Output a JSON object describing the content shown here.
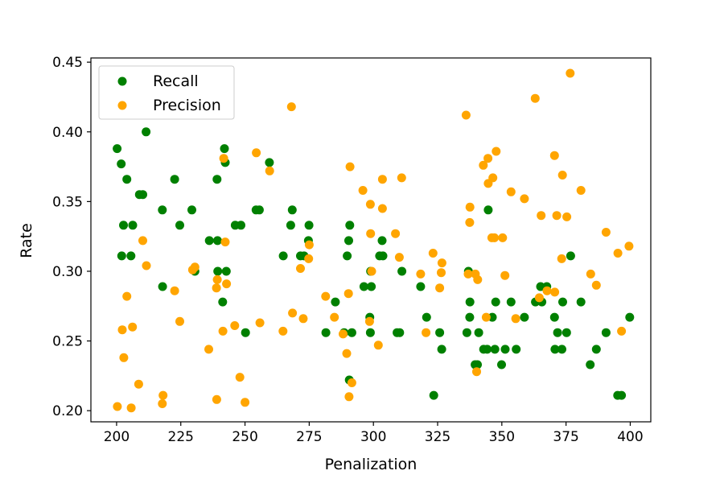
{
  "chart_data": {
    "type": "scatter",
    "xlabel": "Penalization",
    "ylabel": "Rate",
    "xlim": [
      190,
      408
    ],
    "ylim": [
      0.192,
      0.453
    ],
    "x_ticks": [
      200,
      225,
      250,
      275,
      300,
      325,
      350,
      375,
      400
    ],
    "y_ticks": [
      0.2,
      0.25,
      0.3,
      0.35,
      0.4,
      0.45
    ],
    "x_tick_labels": [
      "200",
      "225",
      "250",
      "275",
      "300",
      "325",
      "350",
      "375",
      "400"
    ],
    "y_tick_labels": [
      "0.20",
      "0.25",
      "0.30",
      "0.35",
      "0.40",
      "0.45"
    ],
    "grid": false,
    "legend_position": "top-left",
    "series": [
      {
        "name": "Recall",
        "color": "#008000",
        "points": [
          [
            200.2,
            0.388
          ],
          [
            201.8,
            0.377
          ],
          [
            202.0,
            0.311
          ],
          [
            202.7,
            0.333
          ],
          [
            204.0,
            0.366
          ],
          [
            205.6,
            0.311
          ],
          [
            206.3,
            0.333
          ],
          [
            208.9,
            0.355
          ],
          [
            210.2,
            0.355
          ],
          [
            211.5,
            0.4
          ],
          [
            217.8,
            0.344
          ],
          [
            217.9,
            0.289
          ],
          [
            222.6,
            0.366
          ],
          [
            224.6,
            0.333
          ],
          [
            229.3,
            0.344
          ],
          [
            230.5,
            0.3
          ],
          [
            236.1,
            0.322
          ],
          [
            239.1,
            0.366
          ],
          [
            239.3,
            0.322
          ],
          [
            239.4,
            0.3
          ],
          [
            241.3,
            0.278
          ],
          [
            242.0,
            0.388
          ],
          [
            242.3,
            0.378
          ],
          [
            242.7,
            0.3
          ],
          [
            246.2,
            0.333
          ],
          [
            248.4,
            0.333
          ],
          [
            250.2,
            0.256
          ],
          [
            254.3,
            0.344
          ],
          [
            255.6,
            0.344
          ],
          [
            259.5,
            0.378
          ],
          [
            264.9,
            0.311
          ],
          [
            267.8,
            0.333
          ],
          [
            268.4,
            0.344
          ],
          [
            271.6,
            0.311
          ],
          [
            273.0,
            0.311
          ],
          [
            274.7,
            0.322
          ],
          [
            274.9,
            0.333
          ],
          [
            281.5,
            0.256
          ],
          [
            285.2,
            0.278
          ],
          [
            288.6,
            0.256
          ],
          [
            289.8,
            0.311
          ],
          [
            290.4,
            0.322
          ],
          [
            290.6,
            0.222
          ],
          [
            290.8,
            0.333
          ],
          [
            291.6,
            0.256
          ],
          [
            296.3,
            0.289
          ],
          [
            298.6,
            0.267
          ],
          [
            298.8,
            0.256
          ],
          [
            298.9,
            0.3
          ],
          [
            299.2,
            0.289
          ],
          [
            302.4,
            0.311
          ],
          [
            303.4,
            0.322
          ],
          [
            303.7,
            0.311
          ],
          [
            309.2,
            0.256
          ],
          [
            310.2,
            0.256
          ],
          [
            311.1,
            0.3
          ],
          [
            318.4,
            0.289
          ],
          [
            320.7,
            0.267
          ],
          [
            323.5,
            0.211
          ],
          [
            325.8,
            0.256
          ],
          [
            326.6,
            0.244
          ],
          [
            336.4,
            0.256
          ],
          [
            337.0,
            0.3
          ],
          [
            337.5,
            0.267
          ],
          [
            337.6,
            0.278
          ],
          [
            339.6,
            0.233
          ],
          [
            340.5,
            0.233
          ],
          [
            341.0,
            0.256
          ],
          [
            342.9,
            0.244
          ],
          [
            344.3,
            0.244
          ],
          [
            344.7,
            0.344
          ],
          [
            346.3,
            0.267
          ],
          [
            347.3,
            0.244
          ],
          [
            347.6,
            0.278
          ],
          [
            349.9,
            0.233
          ],
          [
            351.3,
            0.244
          ],
          [
            353.6,
            0.278
          ],
          [
            355.6,
            0.244
          ],
          [
            358.8,
            0.267
          ],
          [
            363.1,
            0.278
          ],
          [
            365.1,
            0.289
          ],
          [
            365.6,
            0.278
          ],
          [
            367.5,
            0.289
          ],
          [
            370.5,
            0.267
          ],
          [
            370.7,
            0.244
          ],
          [
            371.7,
            0.256
          ],
          [
            373.4,
            0.244
          ],
          [
            373.7,
            0.278
          ],
          [
            375.2,
            0.256
          ],
          [
            376.8,
            0.311
          ],
          [
            380.8,
            0.278
          ],
          [
            384.4,
            0.233
          ],
          [
            386.8,
            0.244
          ],
          [
            390.6,
            0.256
          ],
          [
            395.1,
            0.211
          ],
          [
            396.6,
            0.211
          ],
          [
            399.8,
            0.267
          ]
        ]
      },
      {
        "name": "Precision",
        "color": "#ffa500",
        "points": [
          [
            200.3,
            0.203
          ],
          [
            202.2,
            0.258
          ],
          [
            202.8,
            0.238
          ],
          [
            204.0,
            0.282
          ],
          [
            205.7,
            0.202
          ],
          [
            206.2,
            0.26
          ],
          [
            208.6,
            0.219
          ],
          [
            210.2,
            0.322
          ],
          [
            211.6,
            0.304
          ],
          [
            217.8,
            0.205
          ],
          [
            218.1,
            0.211
          ],
          [
            222.6,
            0.286
          ],
          [
            224.6,
            0.264
          ],
          [
            229.6,
            0.301
          ],
          [
            230.5,
            0.303
          ],
          [
            235.9,
            0.244
          ],
          [
            238.9,
            0.288
          ],
          [
            239.0,
            0.208
          ],
          [
            239.2,
            0.294
          ],
          [
            241.4,
            0.257
          ],
          [
            241.7,
            0.381
          ],
          [
            242.3,
            0.321
          ],
          [
            242.8,
            0.291
          ],
          [
            246.0,
            0.261
          ],
          [
            248.0,
            0.224
          ],
          [
            250.0,
            0.206
          ],
          [
            254.4,
            0.385
          ],
          [
            255.8,
            0.263
          ],
          [
            259.6,
            0.372
          ],
          [
            264.8,
            0.257
          ],
          [
            268.1,
            0.418
          ],
          [
            268.5,
            0.27
          ],
          [
            271.6,
            0.302
          ],
          [
            272.7,
            0.266
          ],
          [
            274.8,
            0.309
          ],
          [
            275.0,
            0.319
          ],
          [
            281.4,
            0.282
          ],
          [
            284.8,
            0.267
          ],
          [
            288.2,
            0.255
          ],
          [
            289.6,
            0.241
          ],
          [
            290.3,
            0.284
          ],
          [
            290.5,
            0.21
          ],
          [
            290.9,
            0.375
          ],
          [
            291.6,
            0.22
          ],
          [
            295.9,
            0.358
          ],
          [
            298.5,
            0.264
          ],
          [
            298.8,
            0.348
          ],
          [
            298.9,
            0.327
          ],
          [
            299.3,
            0.3
          ],
          [
            301.9,
            0.247
          ],
          [
            303.5,
            0.345
          ],
          [
            303.5,
            0.366
          ],
          [
            308.6,
            0.327
          ],
          [
            310.1,
            0.31
          ],
          [
            311.0,
            0.367
          ],
          [
            318.4,
            0.298
          ],
          [
            320.5,
            0.256
          ],
          [
            323.2,
            0.313
          ],
          [
            325.8,
            0.288
          ],
          [
            326.4,
            0.299
          ],
          [
            326.7,
            0.306
          ],
          [
            336.1,
            0.412
          ],
          [
            336.9,
            0.298
          ],
          [
            337.5,
            0.335
          ],
          [
            337.6,
            0.346
          ],
          [
            339.7,
            0.298
          ],
          [
            340.2,
            0.228
          ],
          [
            340.6,
            0.294
          ],
          [
            342.8,
            0.376
          ],
          [
            343.9,
            0.267
          ],
          [
            344.6,
            0.381
          ],
          [
            344.7,
            0.363
          ],
          [
            346.1,
            0.324
          ],
          [
            346.5,
            0.367
          ],
          [
            347.1,
            0.324
          ],
          [
            347.8,
            0.386
          ],
          [
            350.3,
            0.324
          ],
          [
            351.2,
            0.297
          ],
          [
            353.6,
            0.357
          ],
          [
            355.4,
            0.266
          ],
          [
            358.8,
            0.352
          ],
          [
            363.0,
            0.424
          ],
          [
            364.6,
            0.281
          ],
          [
            365.3,
            0.34
          ],
          [
            367.6,
            0.286
          ],
          [
            370.5,
            0.383
          ],
          [
            370.6,
            0.285
          ],
          [
            371.4,
            0.34
          ],
          [
            373.3,
            0.309
          ],
          [
            373.6,
            0.369
          ],
          [
            375.3,
            0.339
          ],
          [
            376.6,
            0.442
          ],
          [
            380.8,
            0.358
          ],
          [
            384.6,
            0.298
          ],
          [
            386.8,
            0.29
          ],
          [
            390.6,
            0.328
          ],
          [
            395.2,
            0.313
          ],
          [
            396.6,
            0.257
          ],
          [
            399.5,
            0.318
          ]
        ]
      }
    ]
  }
}
